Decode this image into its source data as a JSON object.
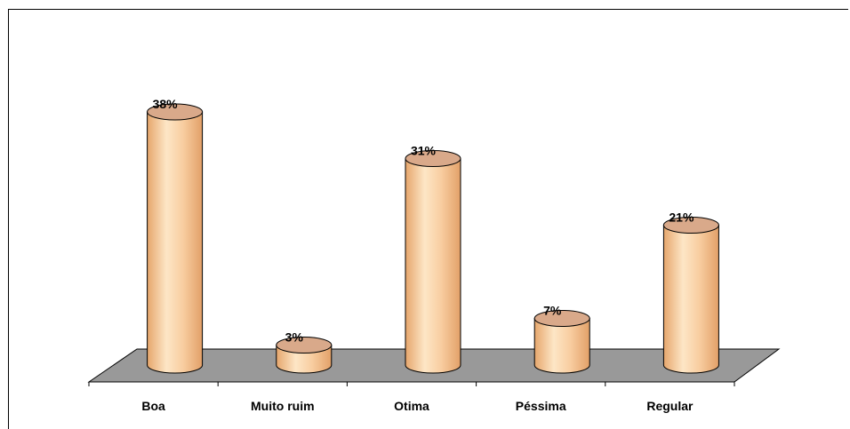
{
  "chart_data": {
    "type": "bar",
    "categories": [
      "Boa",
      "Muito ruim",
      "Otima",
      "Péssima",
      "Regular"
    ],
    "values": [
      38,
      3,
      31,
      7,
      21
    ],
    "value_labels": [
      "38%",
      "3%",
      "31%",
      "7%",
      "21%"
    ],
    "unit": "%",
    "ylim": [
      0,
      40
    ],
    "grid": false,
    "legend": "none",
    "bar_shape": "cylinder-3d",
    "colors": {
      "bar_fill_light": "#fde0bb",
      "bar_fill_mid": "#f7c695",
      "bar_fill_dark": "#e9a972",
      "bar_top": "#d9a98a",
      "floor": "#999999",
      "outline": "#000000"
    }
  }
}
